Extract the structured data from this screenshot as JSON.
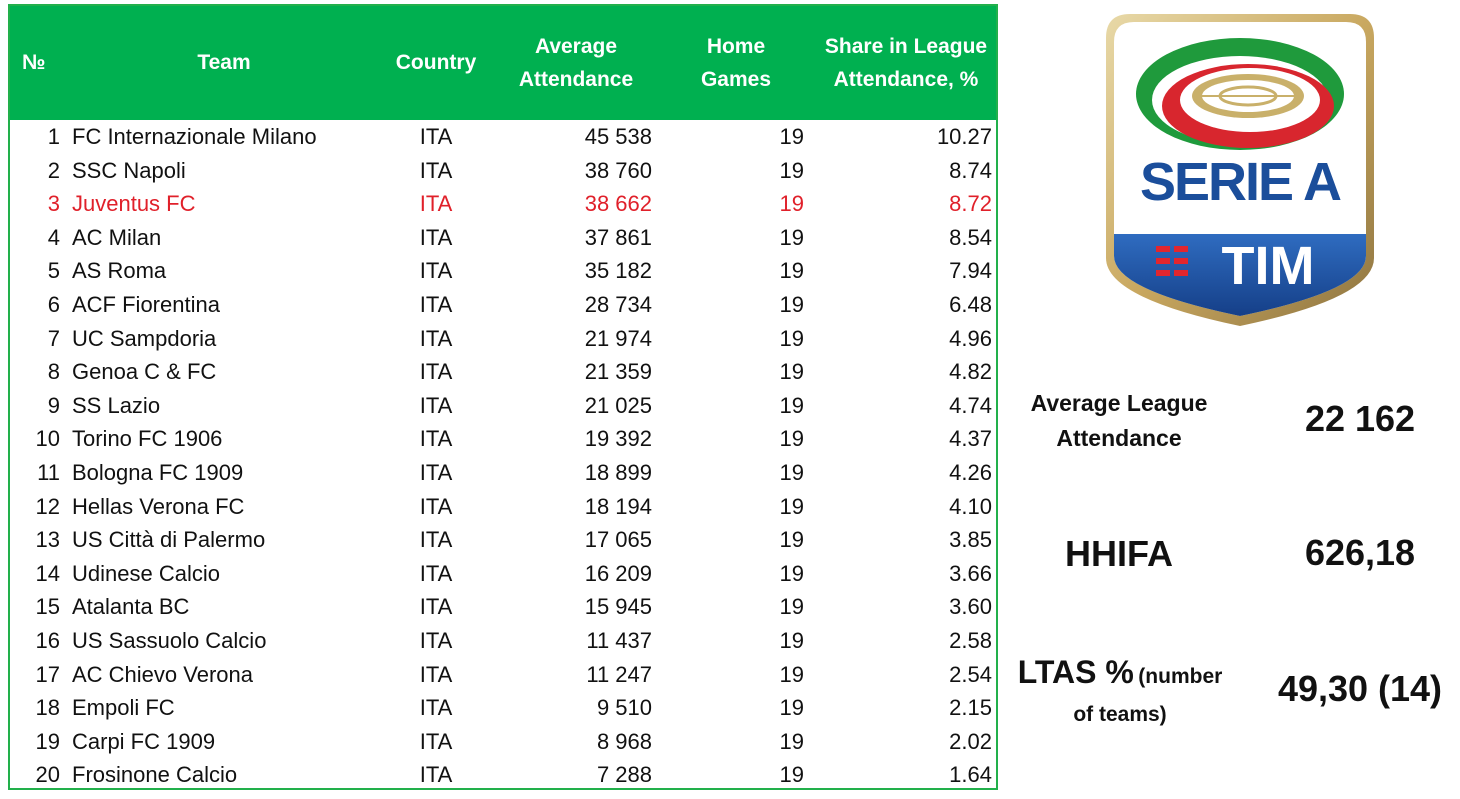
{
  "table": {
    "headers": {
      "no": "№",
      "team": "Team",
      "country": "Country",
      "avg_line1": "Average",
      "avg_line2": "Attendance",
      "games_line1": "Home",
      "games_line2": "Games",
      "share_line1": "Share in League",
      "share_line2": "Attendance, %"
    },
    "rows": [
      {
        "no": "1",
        "team": "FC Internazionale Milano",
        "country": "ITA",
        "avg": "45 538",
        "games": "19",
        "share": "10.27"
      },
      {
        "no": "2",
        "team": "SSC Napoli",
        "country": "ITA",
        "avg": "38 760",
        "games": "19",
        "share": "8.74"
      },
      {
        "no": "3",
        "team": "Juventus FC",
        "country": "ITA",
        "avg": "38 662",
        "games": "19",
        "share": "8.72"
      },
      {
        "no": "4",
        "team": "AC Milan",
        "country": "ITA",
        "avg": "37 861",
        "games": "19",
        "share": "8.54"
      },
      {
        "no": "5",
        "team": "AS Roma",
        "country": "ITA",
        "avg": "35 182",
        "games": "19",
        "share": "7.94"
      },
      {
        "no": "6",
        "team": "ACF Fiorentina",
        "country": "ITA",
        "avg": "28 734",
        "games": "19",
        "share": "6.48"
      },
      {
        "no": "7",
        "team": "UC Sampdoria",
        "country": "ITA",
        "avg": "21 974",
        "games": "19",
        "share": "4.96"
      },
      {
        "no": "8",
        "team": "Genoa C & FC",
        "country": "ITA",
        "avg": "21 359",
        "games": "19",
        "share": "4.82"
      },
      {
        "no": "9",
        "team": "SS Lazio",
        "country": "ITA",
        "avg": "21 025",
        "games": "19",
        "share": "4.74"
      },
      {
        "no": "10",
        "team": "Torino FC 1906",
        "country": "ITA",
        "avg": "19 392",
        "games": "19",
        "share": "4.37"
      },
      {
        "no": "11",
        "team": "Bologna FC 1909",
        "country": "ITA",
        "avg": "18 899",
        "games": "19",
        "share": "4.26"
      },
      {
        "no": "12",
        "team": "Hellas Verona FC",
        "country": "ITA",
        "avg": "18 194",
        "games": "19",
        "share": "4.10"
      },
      {
        "no": "13",
        "team": "US Città di Palermo",
        "country": "ITA",
        "avg": "17 065",
        "games": "19",
        "share": "3.85"
      },
      {
        "no": "14",
        "team": "Udinese Calcio",
        "country": "ITA",
        "avg": "16 209",
        "games": "19",
        "share": "3.66"
      },
      {
        "no": "15",
        "team": "Atalanta BC",
        "country": "ITA",
        "avg": "15 945",
        "games": "19",
        "share": "3.60"
      },
      {
        "no": "16",
        "team": "US Sassuolo Calcio",
        "country": "ITA",
        "avg": "11 437",
        "games": "19",
        "share": "2.58"
      },
      {
        "no": "17",
        "team": "AC Chievo Verona",
        "country": "ITA",
        "avg": "11 247",
        "games": "19",
        "share": "2.54"
      },
      {
        "no": "18",
        "team": "Empoli FC",
        "country": "ITA",
        "avg": "9 510",
        "games": "19",
        "share": "2.15"
      },
      {
        "no": "19",
        "team": "Carpi FC 1909",
        "country": "ITA",
        "avg": "8 968",
        "games": "19",
        "share": "2.02"
      },
      {
        "no": "20",
        "team": "Frosinone Calcio",
        "country": "ITA",
        "avg": "7 288",
        "games": "19",
        "share": "1.64"
      }
    ],
    "highlight_row": 3,
    "highlight_color": "#e0202a",
    "header_color": "#00b050"
  },
  "logo": {
    "icon": "serie-a-tim-logo",
    "wordmark": "SERIE A",
    "sponsor": "TIM"
  },
  "stats": {
    "avg_label_line1": "Average League",
    "avg_label_line2": "Attendance",
    "avg_value": "22 162",
    "hhifa_label": "HHIFA",
    "hhifa_value": "626,18",
    "ltas_label_main": "LTAS %",
    "ltas_label_small1": "(number",
    "ltas_label_small2": "of teams)",
    "ltas_value": "49,30 (14)"
  }
}
